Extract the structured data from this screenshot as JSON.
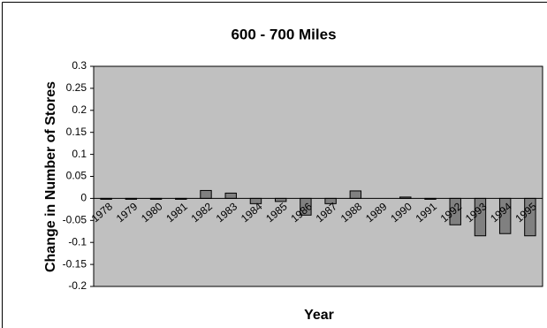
{
  "chart_data": {
    "type": "bar",
    "title": "600 - 700 Miles",
    "x_label": "Year",
    "y_label": "Change in Number of Stores",
    "categories": [
      "1978",
      "1979",
      "1980",
      "1981",
      "1982",
      "1983",
      "1984",
      "1985",
      "1986",
      "1987",
      "1988",
      "1989",
      "1990",
      "1991",
      "1992",
      "1993",
      "1994",
      "1995"
    ],
    "values": [
      -0.002,
      -0.002,
      -0.002,
      -0.002,
      0.018,
      0.012,
      -0.012,
      -0.007,
      -0.038,
      -0.012,
      0.017,
      0,
      0.003,
      -0.002,
      -0.06,
      -0.085,
      -0.08,
      -0.085
    ],
    "color": "#808080",
    "plot_background": "#c0c0c0",
    "ylim": [
      -0.2,
      0.3
    ],
    "yticks": [
      -0.2,
      -0.15,
      -0.1,
      -0.05,
      0,
      0.05,
      0.1,
      0.15,
      0.2,
      0.25,
      0.3
    ],
    "grid": false
  }
}
